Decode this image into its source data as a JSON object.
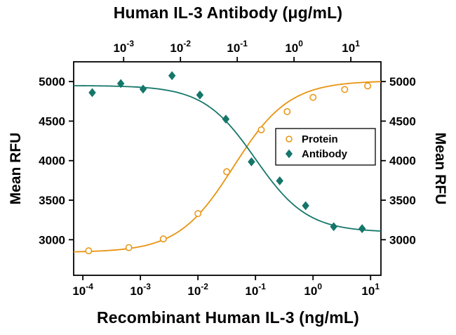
{
  "page": {
    "title_top": "Human IL-3 Antibody (μg/mL)",
    "title_bottom": "Recombinant Human IL-3 (ng/mL)",
    "ylabel_left": "Mean RFU",
    "ylabel_right": "Mean RFU"
  },
  "legend": {
    "items": [
      {
        "label": "Protein",
        "marker": "circle-open",
        "color": "#E8930F"
      },
      {
        "label": "Antibody",
        "marker": "diamond-filled",
        "color": "#15766A"
      }
    ]
  },
  "chart_data": {
    "type": "scatter",
    "grid": false,
    "legend_position": "middle-right",
    "y_axis": {
      "label": "Mean RFU",
      "ticks": [
        3000,
        3500,
        4000,
        4500,
        5000
      ],
      "range": [
        2550,
        5250
      ],
      "mirrored_right": true
    },
    "x_axis_bottom": {
      "label": "Recombinant Human IL-3 (ng/mL)",
      "scale": "log10",
      "tick_exponents": [
        -4,
        -3,
        -2,
        -1,
        0,
        1
      ],
      "range_log10": [
        -4.16,
        1.18
      ]
    },
    "x_axis_top": {
      "label": "Human IL-3 Antibody (μg/mL)",
      "scale": "log10",
      "tick_exponents": [
        -3,
        -2,
        -1,
        0,
        1
      ],
      "range_log10": [
        -3.88,
        1.53
      ]
    },
    "series": [
      {
        "name": "Protein",
        "x_axis": "bottom",
        "color": "#E8930F",
        "marker": "circle-open",
        "x": [
          0.000126,
          0.00063,
          0.0025,
          0.01,
          0.0316,
          0.126,
          0.355,
          1.0,
          3.55,
          8.9
        ],
        "y": [
          2860,
          2900,
          3010,
          3330,
          3860,
          4390,
          4620,
          4800,
          4900,
          4945
        ],
        "fit_4pl": {
          "y_left": 2840,
          "y_right": 5010,
          "log10_mid": -1.38,
          "hill": 0.9
        }
      },
      {
        "name": "Antibody",
        "x_axis": "top",
        "color": "#15766A",
        "marker": "diamond-filled",
        "x": [
          0.00028,
          0.00089,
          0.0022,
          0.0071,
          0.022,
          0.063,
          0.178,
          0.56,
          1.6,
          5.0,
          15.8
        ],
        "y": [
          4860,
          4975,
          4905,
          5075,
          4830,
          4525,
          3985,
          3745,
          3430,
          3165,
          3140
        ],
        "fit_4pl": {
          "y_left": 4950,
          "y_right": 3095,
          "log10_mid": -0.68,
          "hill": 0.95
        }
      }
    ]
  }
}
